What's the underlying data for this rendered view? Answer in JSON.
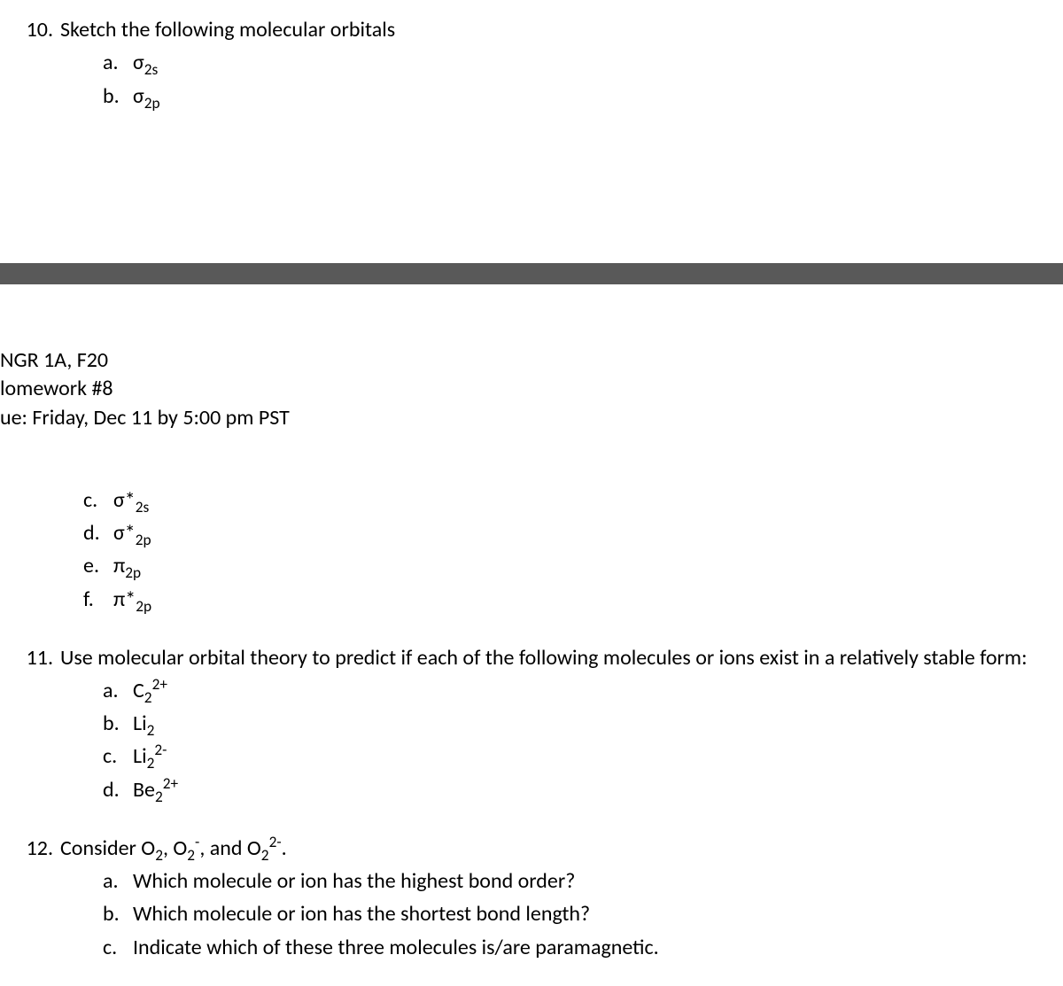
{
  "q10": {
    "num": "10.",
    "text": "Sketch the following molecular orbitals",
    "opts_ab": [
      {
        "letter": "a.",
        "html": "σ<sub>2s</sub>"
      },
      {
        "letter": "b.",
        "html": "σ<sub>2p</sub>"
      }
    ],
    "opts_cf": [
      {
        "letter": "c.",
        "html": "σ*<sub>2s</sub>"
      },
      {
        "letter": "d.",
        "html": "σ*<sub>2p</sub>"
      },
      {
        "letter": "e.",
        "html": "π<sub>2p</sub>"
      },
      {
        "letter": "f.",
        "html": "π*<sub>2p</sub>"
      }
    ]
  },
  "header": {
    "line1": "NGR 1A, F20",
    "line2": "lomework #8",
    "line3": "ue: Friday, Dec 11 by 5:00 pm PST"
  },
  "q11": {
    "num": "11.",
    "text": "Use molecular orbital theory to predict if each of the following molecules or ions exist in a relatively stable form:",
    "opts": [
      {
        "letter": "a.",
        "html": "C<sub>2</sub><sup>2+</sup>"
      },
      {
        "letter": "b.",
        "html": "Li<sub>2</sub>"
      },
      {
        "letter": "c.",
        "html": "Li<sub>2</sub><sup>2-</sup>"
      },
      {
        "letter": "d.",
        "html": "Be<sub>2</sub><sup>2+</sup>"
      }
    ]
  },
  "q12": {
    "num": "12.",
    "text_html": "Consider O<sub>2</sub>, O<sub>2</sub><sup>-</sup>, and O<sub>2</sub><sup>2-</sup>.",
    "opts": [
      {
        "letter": "a.",
        "html": "Which molecule or ion has the highest bond order?"
      },
      {
        "letter": "b.",
        "html": "Which molecule or ion has the shortest bond length?"
      },
      {
        "letter": "c.",
        "html": "Indicate which of these three molecules is/are paramagnetic."
      }
    ]
  }
}
